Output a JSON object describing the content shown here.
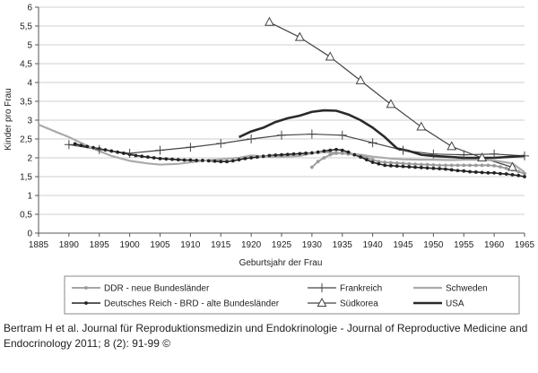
{
  "chart_data": {
    "type": "line",
    "title": "",
    "xlabel": "Geburtsjahr der Frau",
    "ylabel": "Kinder pro Frau",
    "xlim": [
      1885,
      1965
    ],
    "ylim": [
      0,
      6
    ],
    "x_ticks": [
      1885,
      1890,
      1895,
      1900,
      1905,
      1910,
      1915,
      1920,
      1925,
      1930,
      1935,
      1940,
      1945,
      1950,
      1955,
      1960,
      1965
    ],
    "y_ticks": [
      "0",
      "0,5",
      "1",
      "1,5",
      "2",
      "2,5",
      "3",
      "3,5",
      "4",
      "4,5",
      "5",
      "5,5",
      "6"
    ],
    "grid": "horizontal",
    "legend_position": "bottom",
    "series": [
      {
        "name": "DDR - neue Bundesländer",
        "color": "#999999",
        "marker": "dot",
        "x": [
          1930,
          1931,
          1932,
          1933,
          1934,
          1935,
          1936,
          1937,
          1938,
          1939,
          1940,
          1941,
          1942,
          1943,
          1944,
          1945,
          1946,
          1947,
          1948,
          1949,
          1950,
          1951,
          1952,
          1953,
          1954,
          1955,
          1956,
          1957,
          1958,
          1959,
          1960,
          1961,
          1962,
          1963,
          1964,
          1965
        ],
        "y": [
          1.75,
          1.9,
          2.0,
          2.08,
          2.12,
          2.12,
          2.1,
          2.08,
          2.05,
          2.0,
          1.95,
          1.9,
          1.88,
          1.87,
          1.86,
          1.85,
          1.84,
          1.83,
          1.82,
          1.82,
          1.81,
          1.8,
          1.8,
          1.8,
          1.8,
          1.8,
          1.8,
          1.8,
          1.8,
          1.8,
          1.79,
          1.76,
          1.72,
          1.68,
          1.63,
          1.58
        ]
      },
      {
        "name": "Deutsches Reich - BRD - alte Bundesländer",
        "color": "#222222",
        "marker": "dot",
        "x": [
          1891,
          1892,
          1893,
          1894,
          1895,
          1896,
          1897,
          1898,
          1899,
          1900,
          1901,
          1902,
          1903,
          1904,
          1905,
          1906,
          1907,
          1908,
          1909,
          1910,
          1911,
          1912,
          1913,
          1914,
          1915,
          1916,
          1917,
          1918,
          1919,
          1920,
          1921,
          1922,
          1923,
          1924,
          1925,
          1926,
          1927,
          1928,
          1929,
          1930,
          1931,
          1932,
          1933,
          1934,
          1935,
          1936,
          1937,
          1938,
          1939,
          1940,
          1941,
          1942,
          1943,
          1944,
          1945,
          1946,
          1947,
          1948,
          1949,
          1950,
          1951,
          1952,
          1953,
          1954,
          1955,
          1956,
          1957,
          1958,
          1959,
          1960,
          1961,
          1962,
          1963,
          1964,
          1965
        ],
        "y": [
          2.37,
          2.33,
          2.3,
          2.27,
          2.24,
          2.21,
          2.18,
          2.15,
          2.12,
          2.09,
          2.06,
          2.04,
          2.02,
          2.0,
          1.98,
          1.97,
          1.96,
          1.95,
          1.94,
          1.94,
          1.93,
          1.93,
          1.92,
          1.91,
          1.9,
          1.9,
          1.92,
          1.95,
          1.98,
          2.0,
          2.02,
          2.04,
          2.06,
          2.07,
          2.08,
          2.09,
          2.1,
          2.11,
          2.12,
          2.13,
          2.15,
          2.18,
          2.2,
          2.22,
          2.2,
          2.15,
          2.08,
          2.02,
          1.95,
          1.88,
          1.84,
          1.8,
          1.79,
          1.78,
          1.77,
          1.76,
          1.75,
          1.74,
          1.73,
          1.72,
          1.71,
          1.7,
          1.68,
          1.66,
          1.65,
          1.63,
          1.62,
          1.61,
          1.6,
          1.6,
          1.58,
          1.57,
          1.55,
          1.53,
          1.5
        ]
      },
      {
        "name": "Frankreich",
        "color": "#444444",
        "marker": "plus",
        "x": [
          1890,
          1895,
          1900,
          1905,
          1910,
          1915,
          1920,
          1925,
          1930,
          1935,
          1940,
          1945,
          1950,
          1955,
          1960,
          1965
        ],
        "y": [
          2.35,
          2.22,
          2.12,
          2.2,
          2.28,
          2.38,
          2.5,
          2.6,
          2.63,
          2.6,
          2.4,
          2.2,
          2.1,
          2.08,
          2.1,
          2.05
        ]
      },
      {
        "name": "Südkorea",
        "color": "#444444",
        "marker": "triangle",
        "x": [
          1923,
          1928,
          1933,
          1938,
          1943,
          1948,
          1953,
          1958,
          1963
        ],
        "y": [
          5.6,
          5.2,
          4.68,
          4.05,
          3.42,
          2.82,
          2.3,
          2.0,
          1.75
        ]
      },
      {
        "name": "Schweden",
        "color": "#aaaaaa",
        "marker": "none",
        "x": [
          1885,
          1888,
          1890,
          1893,
          1895,
          1897,
          1900,
          1903,
          1905,
          1908,
          1910,
          1913,
          1915,
          1918,
          1920,
          1923,
          1925,
          1928,
          1930,
          1932,
          1935,
          1938,
          1940,
          1943,
          1945,
          1948,
          1950,
          1953,
          1955,
          1958,
          1960,
          1963,
          1965
        ],
        "y": [
          2.88,
          2.68,
          2.55,
          2.32,
          2.18,
          2.05,
          1.92,
          1.85,
          1.82,
          1.84,
          1.88,
          1.94,
          1.96,
          2.0,
          2.06,
          2.03,
          2.03,
          2.05,
          2.12,
          2.15,
          2.13,
          2.08,
          2.03,
          1.98,
          1.96,
          1.95,
          1.95,
          1.94,
          1.95,
          1.95,
          1.93,
          1.85,
          1.62
        ]
      },
      {
        "name": "USA",
        "color": "#2a2a2a",
        "marker": "none",
        "x": [
          1918,
          1920,
          1922,
          1924,
          1926,
          1928,
          1930,
          1932,
          1934,
          1936,
          1938,
          1940,
          1942,
          1944,
          1946,
          1948,
          1950,
          1955,
          1960,
          1965
        ],
        "y": [
          2.55,
          2.7,
          2.8,
          2.95,
          3.05,
          3.12,
          3.22,
          3.26,
          3.25,
          3.15,
          3.0,
          2.8,
          2.55,
          2.25,
          2.18,
          2.08,
          2.05,
          2.0,
          2.0,
          2.05
        ]
      }
    ]
  },
  "caption": "Bertram H et al. Journal für Reproduktionsmedizin und Endokrinologie - Journal of Reproductive Medicine and Endocrinology 2011; 8 (2): 91-99 ©"
}
